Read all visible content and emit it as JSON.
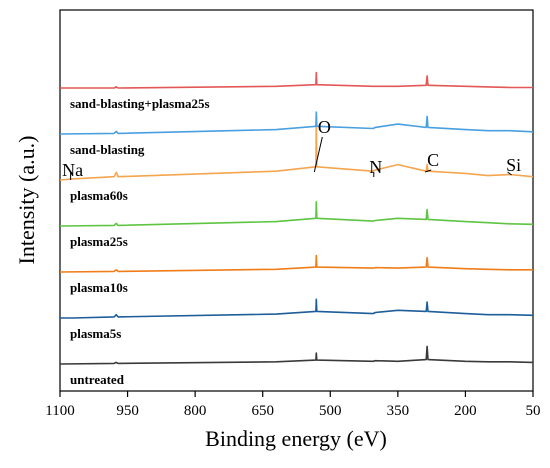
{
  "chart_data": {
    "type": "line",
    "title": "",
    "xlabel": "Binding energy (eV)",
    "ylabel": "Intensity (a.u.)",
    "xlim": [
      1100,
      50
    ],
    "x_reversed": true,
    "x_ticks": [
      1100,
      950,
      800,
      650,
      500,
      350,
      200,
      50
    ],
    "y_ticks": [],
    "grid": false,
    "legend": "inline labels",
    "peak_labels": [
      {
        "text": "Na",
        "x": 1072
      },
      {
        "text": "O",
        "x": 531
      },
      {
        "text": "N",
        "x": 399
      },
      {
        "text": "C",
        "x": 285
      },
      {
        "text": "Si",
        "x": 102
      }
    ],
    "series": [
      {
        "name": "untreated",
        "color": "#3a3a3a",
        "offset": 0,
        "x": [
          1100,
          980,
          975,
          971,
          620,
          532,
          531,
          530,
          405,
          400,
          350,
          287,
          285,
          283,
          200,
          150,
          102,
          50
        ],
        "y": [
          6,
          7,
          9,
          7,
          10,
          13,
          26,
          13,
          11,
          12,
          11,
          14,
          38,
          14,
          11,
          10,
          10,
          9
        ]
      },
      {
        "name": "plasma5s",
        "color": "#1c5d9a",
        "offset": 1,
        "x": [
          1100,
          1072,
          980,
          975,
          971,
          620,
          532,
          531,
          530,
          405,
          400,
          350,
          287,
          285,
          283,
          200,
          150,
          102,
          50
        ],
        "y": [
          8,
          8,
          10,
          14,
          10,
          15,
          20,
          42,
          20,
          16,
          18,
          22,
          20,
          37,
          20,
          16,
          14,
          14,
          13
        ]
      },
      {
        "name": "plasma10s",
        "color": "#f07d1a",
        "offset": 2,
        "x": [
          1100,
          980,
          975,
          971,
          620,
          532,
          531,
          530,
          405,
          400,
          350,
          287,
          285,
          283,
          200,
          150,
          102,
          50
        ],
        "y": [
          8,
          9,
          12,
          9,
          13,
          17,
          38,
          17,
          15,
          16,
          15,
          17,
          34,
          17,
          14,
          13,
          12,
          12
        ]
      },
      {
        "name": "plasma25s",
        "color": "#5ec442",
        "offset": 3,
        "x": [
          1100,
          980,
          975,
          971,
          620,
          532,
          531,
          530,
          405,
          400,
          350,
          287,
          285,
          283,
          200,
          150,
          102,
          50
        ],
        "y": [
          8,
          9,
          13,
          9,
          16,
          22,
          52,
          22,
          17,
          18,
          22,
          20,
          38,
          20,
          16,
          14,
          12,
          11
        ]
      },
      {
        "name": "plasma60s",
        "color": "#f4a54e",
        "offset": 4,
        "x": [
          1100,
          1072,
          980,
          975,
          971,
          620,
          532,
          531,
          530,
          405,
          400,
          350,
          287,
          285,
          283,
          200,
          150,
          102,
          50
        ],
        "y": [
          6,
          8,
          12,
          20,
          12,
          22,
          30,
          110,
          30,
          22,
          24,
          34,
          22,
          34,
          22,
          18,
          14,
          16,
          12
        ]
      },
      {
        "name": "sand-blasting",
        "color": "#4a9fe0",
        "offset": 5,
        "x": [
          1100,
          980,
          975,
          971,
          620,
          532,
          531,
          530,
          405,
          400,
          350,
          287,
          285,
          283,
          200,
          150,
          102,
          50
        ],
        "y": [
          8,
          9,
          13,
          9,
          16,
          22,
          48,
          22,
          18,
          20,
          26,
          20,
          40,
          20,
          16,
          14,
          14,
          12
        ]
      },
      {
        "name": "sand-blasting+plasma25s",
        "color": "#e35757",
        "offset": 6,
        "x": [
          1100,
          980,
          975,
          971,
          620,
          532,
          531,
          530,
          405,
          400,
          350,
          287,
          285,
          283,
          200,
          150,
          102,
          50
        ],
        "y": [
          8,
          8,
          10,
          8,
          11,
          14,
          36,
          14,
          11,
          11,
          11,
          13,
          30,
          13,
          11,
          10,
          9,
          9
        ]
      }
    ]
  }
}
